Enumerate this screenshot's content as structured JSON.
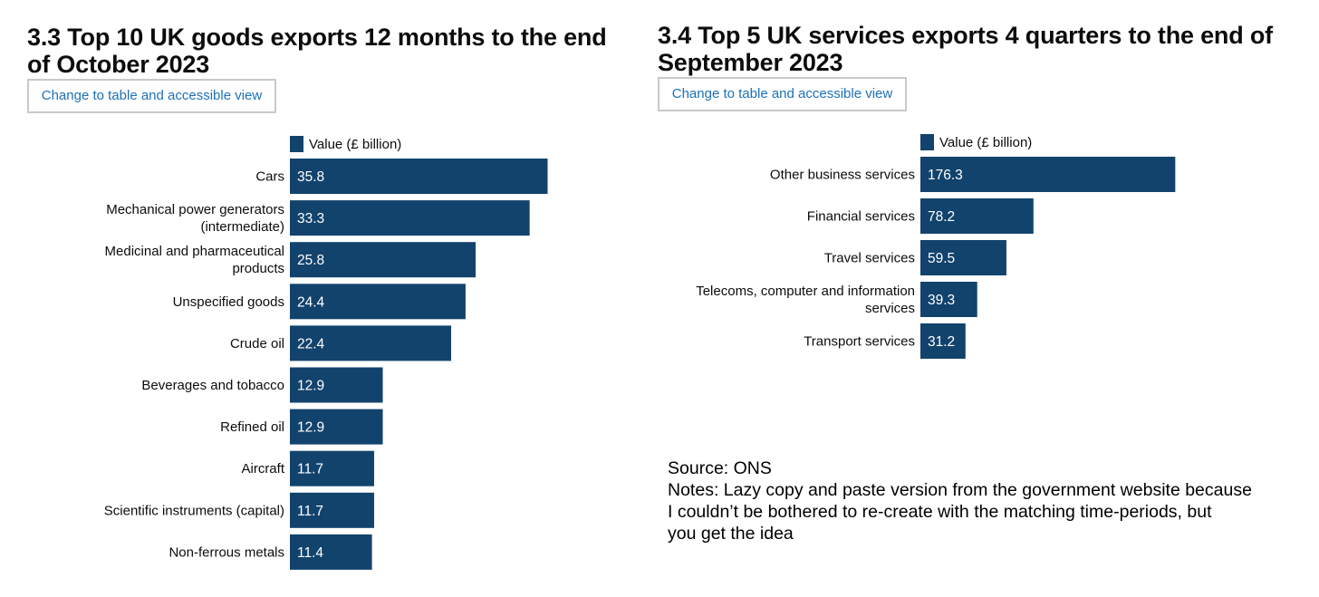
{
  "chart_data": [
    {
      "type": "bar",
      "orientation": "horizontal",
      "title": "3.3 Top 10 UK goods exports 12 months to the end of October 2023",
      "button_label": "Change to table and accessible view",
      "legend_label": "Value (£ billion)",
      "legend_position": "top",
      "categories": [
        [
          "Cars"
        ],
        [
          "Mechanical power generators",
          "(intermediate)"
        ],
        [
          "Medicinal and pharmaceutical",
          "products"
        ],
        [
          "Unspecified goods"
        ],
        [
          "Crude oil"
        ],
        [
          "Beverages and tobacco"
        ],
        [
          "Refined oil"
        ],
        [
          "Aircraft"
        ],
        [
          "Scientific instruments (capital)"
        ],
        [
          "Non-ferrous metals"
        ]
      ],
      "series": [
        {
          "name": "Value (£ billion)",
          "values": [
            35.8,
            33.3,
            25.8,
            24.4,
            22.4,
            12.9,
            12.9,
            11.7,
            11.7,
            11.4
          ]
        }
      ],
      "data_labels": [
        "35.8",
        "33.3",
        "25.8",
        "24.4",
        "22.4",
        "12.9",
        "12.9",
        "11.7",
        "11.7",
        "11.4"
      ],
      "xlim": [
        0,
        38
      ],
      "grid": false,
      "bar_color": "#12436d"
    },
    {
      "type": "bar",
      "orientation": "horizontal",
      "title": "3.4 Top 5 UK services exports 4 quarters to the end of September 2023",
      "button_label": "Change to table and accessible view",
      "legend_label": "Value (£ billion)",
      "legend_position": "top",
      "categories": [
        [
          "Other business services"
        ],
        [
          "Financial services"
        ],
        [
          "Travel services"
        ],
        [
          "Telecoms, computer and information",
          "services"
        ],
        [
          "Transport services"
        ]
      ],
      "series": [
        {
          "name": "Value (£ billion)",
          "values": [
            176.3,
            78.2,
            59.5,
            39.3,
            31.2
          ]
        }
      ],
      "data_labels": [
        "176.3",
        "78.2",
        "59.5",
        "39.3",
        "31.2"
      ],
      "xlim": [
        0,
        188
      ],
      "grid": false,
      "bar_color": "#12436d"
    }
  ],
  "notes": {
    "source": "Source: ONS",
    "lines": [
      "Notes: Lazy copy and paste version from the government website because",
      "I couldn’t be bothered to re-create with the matching time-periods, but",
      "you get the idea"
    ]
  }
}
